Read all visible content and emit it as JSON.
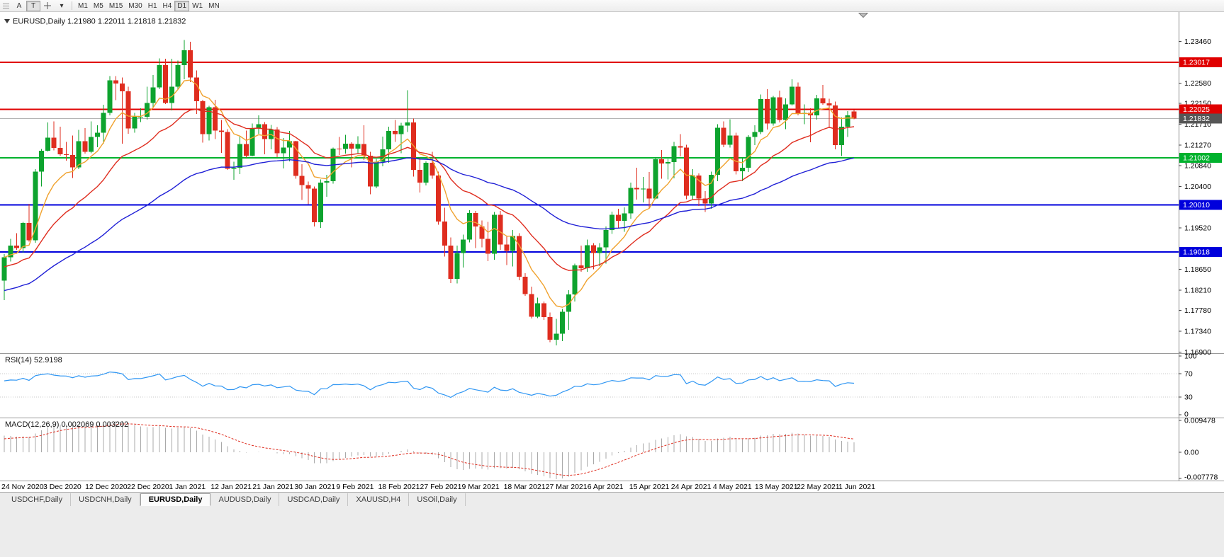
{
  "toolbar": {
    "tool_a": "A",
    "tool_t": "T",
    "timeframes": [
      "M1",
      "M5",
      "M15",
      "M30",
      "H1",
      "H4",
      "D1",
      "W1",
      "MN"
    ],
    "active_timeframe": "D1"
  },
  "chart": {
    "header": "EURUSD,Daily 1.21980 1.22011 1.21818 1.21832"
  },
  "colors": {
    "candle_up": "#0da32e",
    "candle_down": "#df2d1f",
    "level_red": "#e00000",
    "level_green": "#00b22d",
    "level_blue": "#0000dc",
    "ma_fast": "#f0a22e",
    "ma_mid": "#df2d1f",
    "ma_slow": "#1f1fd6",
    "rsi_line": "#2f96f3",
    "macd_hist": "#a9a9a9",
    "macd_signal": "#df2d1f",
    "current_tag_bg": "#565656",
    "bid_line": "#b4b4b4"
  },
  "chart_data": {
    "type": "candlestick",
    "symbol": "EURUSD",
    "timeframe": "Daily",
    "current_bar": {
      "open": "1.21980",
      "high": "1.22011",
      "low": "1.21818",
      "close": "1.21832"
    },
    "current_price": {
      "value": 1.21832,
      "label": "1.21832"
    },
    "levels": [
      {
        "price": 1.23017,
        "label": "1.23017",
        "color": "#e00000"
      },
      {
        "price": 1.22025,
        "label": "1.22025",
        "color": "#e00000"
      },
      {
        "price": 1.21002,
        "label": "1.21002",
        "color": "#00b22d"
      },
      {
        "price": 1.2001,
        "label": "1.20010",
        "color": "#0000dc"
      },
      {
        "price": 1.19018,
        "label": "1.19018",
        "color": "#0000dc"
      }
    ],
    "price_ticks": [
      "1.23460",
      "1.22580",
      "1.22150",
      "1.21710",
      "1.21270",
      "1.20840",
      "1.20400",
      "1.19520",
      "1.18650",
      "1.18210",
      "1.17780",
      "1.17340",
      "1.16900"
    ],
    "date_labels": [
      "24 Nov 2020",
      "3 Dec 2020",
      "12 Dec 2020",
      "22 Dec 2020",
      "1 Jan 2021",
      "12 Jan 2021",
      "21 Jan 2021",
      "30 Jan 2021",
      "9 Feb 2021",
      "18 Feb 2021",
      "27 Feb 2021",
      "9 Mar 2021",
      "18 Mar 2021",
      "27 Mar 2021",
      "6 Apr 2021",
      "15 Apr 2021",
      "24 Apr 2021",
      "4 May 2021",
      "13 May 2021",
      "22 May 2021",
      "1 Jun 2021"
    ],
    "moving_averages": [
      {
        "name": "fast-ma-line",
        "period": 8,
        "color": "#f0a22e"
      },
      {
        "name": "mid-ma-line",
        "period": 21,
        "color": "#df2d1f"
      },
      {
        "name": "slow-ma-line",
        "period": 55,
        "color": "#1f1fd6"
      }
    ],
    "indicators": {
      "rsi": {
        "display": "RSI(14) 52.9198",
        "period": 14,
        "levels": [
          "100",
          "70",
          "30",
          "0"
        ],
        "line_color": "#2f96f3"
      },
      "macd": {
        "display": "MACD(12,26,9) 0.002069 0.003202",
        "axis": [
          "0.009478",
          "0.00",
          "-0.007778"
        ],
        "max": 0.009478,
        "min": -0.007778
      }
    },
    "candles": [
      [
        1.1841,
        1.1897,
        1.18,
        1.189
      ],
      [
        1.189,
        1.1929,
        1.1881,
        1.1915
      ],
      [
        1.1915,
        1.1941,
        1.1906,
        1.191
      ],
      [
        1.191,
        1.1965,
        1.19,
        1.1963
      ],
      [
        1.1963,
        1.2003,
        1.1923,
        1.1926
      ],
      [
        1.1926,
        1.2076,
        1.1921,
        1.2071
      ],
      [
        1.2071,
        1.2119,
        1.204,
        1.2115
      ],
      [
        1.2115,
        1.2175,
        1.2114,
        1.2143
      ],
      [
        1.2143,
        1.2177,
        1.2116,
        1.2121
      ],
      [
        1.2121,
        1.2166,
        1.2105,
        1.2108
      ],
      [
        1.2108,
        1.2134,
        1.2094,
        1.2106
      ],
      [
        1.2106,
        1.2147,
        1.2058,
        1.208
      ],
      [
        1.208,
        1.2159,
        1.2076,
        1.2135
      ],
      [
        1.2135,
        1.2163,
        1.2109,
        1.2113
      ],
      [
        1.2113,
        1.2177,
        1.211,
        1.2144
      ],
      [
        1.2144,
        1.2169,
        1.2123,
        1.2153
      ],
      [
        1.2153,
        1.2212,
        1.213,
        1.2195
      ],
      [
        1.2195,
        1.2273,
        1.219,
        1.2264
      ],
      [
        1.2264,
        1.2273,
        1.2222,
        1.2257
      ],
      [
        1.2257,
        1.227,
        1.213,
        1.2241
      ],
      [
        1.2241,
        1.225,
        1.2151,
        1.2162
      ],
      [
        1.2162,
        1.2195,
        1.2153,
        1.2187
      ],
      [
        1.2187,
        1.2205,
        1.2176,
        1.2187
      ],
      [
        1.2187,
        1.225,
        1.2181,
        1.2216
      ],
      [
        1.2216,
        1.2275,
        1.2208,
        1.2249
      ],
      [
        1.2249,
        1.231,
        1.2245,
        1.2296
      ],
      [
        1.2296,
        1.2309,
        1.2214,
        1.2216
      ],
      [
        1.2216,
        1.2309,
        1.22,
        1.225
      ],
      [
        1.225,
        1.2306,
        1.2245,
        1.2296
      ],
      [
        1.2296,
        1.2349,
        1.2266,
        1.2327
      ],
      [
        1.2327,
        1.2345,
        1.226,
        1.227
      ],
      [
        1.227,
        1.2285,
        1.2193,
        1.222
      ],
      [
        1.222,
        1.2223,
        1.2132,
        1.215
      ],
      [
        1.215,
        1.221,
        1.2137,
        1.2207
      ],
      [
        1.2207,
        1.2223,
        1.214,
        1.2158
      ],
      [
        1.2158,
        1.218,
        1.2111,
        1.2155
      ],
      [
        1.2155,
        1.2161,
        1.2075,
        1.2077
      ],
      [
        1.2077,
        1.2092,
        1.2054,
        1.2079
      ],
      [
        1.2079,
        1.2145,
        1.2066,
        1.2129
      ],
      [
        1.2129,
        1.2158,
        1.2101,
        1.2105
      ],
      [
        1.2105,
        1.2173,
        1.2103,
        1.2163
      ],
      [
        1.2163,
        1.219,
        1.2151,
        1.2171
      ],
      [
        1.2171,
        1.2176,
        1.2108,
        1.214
      ],
      [
        1.214,
        1.217,
        1.2118,
        1.216
      ],
      [
        1.216,
        1.2165,
        1.2102,
        1.211
      ],
      [
        1.211,
        1.2142,
        1.2078,
        1.2122
      ],
      [
        1.2122,
        1.2157,
        1.2093,
        1.2135
      ],
      [
        1.2135,
        1.2136,
        1.2056,
        1.2062
      ],
      [
        1.2062,
        1.2087,
        1.2011,
        1.2043
      ],
      [
        1.2043,
        1.205,
        1.2002,
        1.2035
      ],
      [
        1.2035,
        1.204,
        1.1955,
        1.1964
      ],
      [
        1.1964,
        1.2055,
        1.1952,
        1.2048
      ],
      [
        1.2048,
        1.2064,
        1.2018,
        1.2051
      ],
      [
        1.2051,
        1.2122,
        1.2046,
        1.212
      ],
      [
        1.212,
        1.2144,
        1.2106,
        1.2119
      ],
      [
        1.2119,
        1.2149,
        1.2109,
        1.213
      ],
      [
        1.213,
        1.2133,
        1.208,
        1.212
      ],
      [
        1.212,
        1.2146,
        1.2109,
        1.2129
      ],
      [
        1.2129,
        1.2169,
        1.2096,
        1.2105
      ],
      [
        1.2105,
        1.2113,
        1.2023,
        1.204
      ],
      [
        1.204,
        1.2098,
        1.2036,
        1.2092
      ],
      [
        1.2092,
        1.2145,
        1.2082,
        1.2118
      ],
      [
        1.2118,
        1.2166,
        1.209,
        1.2157
      ],
      [
        1.2157,
        1.218,
        1.2134,
        1.215
      ],
      [
        1.215,
        1.2174,
        1.211,
        1.2168
      ],
      [
        1.2168,
        1.2243,
        1.2155,
        1.2175
      ],
      [
        1.2175,
        1.2183,
        1.2061,
        1.2075
      ],
      [
        1.2075,
        1.2101,
        1.2027,
        1.2048
      ],
      [
        1.2048,
        1.2093,
        1.2042,
        1.209
      ],
      [
        1.209,
        1.2113,
        1.2056,
        1.2063
      ],
      [
        1.2063,
        1.2071,
        1.1959,
        1.1966
      ],
      [
        1.1966,
        1.1995,
        1.1892,
        1.1915
      ],
      [
        1.1915,
        1.1932,
        1.1836,
        1.1845
      ],
      [
        1.1845,
        1.1915,
        1.1835,
        1.1899
      ],
      [
        1.1899,
        1.1938,
        1.1869,
        1.1928
      ],
      [
        1.1928,
        1.199,
        1.1922,
        1.1984
      ],
      [
        1.1984,
        1.1988,
        1.191,
        1.1955
      ],
      [
        1.1955,
        1.1968,
        1.1911,
        1.1929
      ],
      [
        1.1929,
        1.1965,
        1.1882,
        1.1898
      ],
      [
        1.1898,
        1.1986,
        1.1885,
        1.198
      ],
      [
        1.198,
        1.1988,
        1.1906,
        1.1917
      ],
      [
        1.1917,
        1.1935,
        1.1874,
        1.1904
      ],
      [
        1.1904,
        1.1948,
        1.1871,
        1.1935
      ],
      [
        1.1935,
        1.1941,
        1.1842,
        1.1849
      ],
      [
        1.1849,
        1.1857,
        1.1809,
        1.1813
      ],
      [
        1.1813,
        1.1828,
        1.1761,
        1.1765
      ],
      [
        1.1765,
        1.1805,
        1.1762,
        1.1793
      ],
      [
        1.1793,
        1.1797,
        1.1758,
        1.1764
      ],
      [
        1.1764,
        1.1774,
        1.1711,
        1.1716
      ],
      [
        1.1716,
        1.176,
        1.1704,
        1.1729
      ],
      [
        1.1729,
        1.1781,
        1.1713,
        1.1775
      ],
      [
        1.1775,
        1.1821,
        1.1737,
        1.1812
      ],
      [
        1.1812,
        1.1877,
        1.1797,
        1.1873
      ],
      [
        1.1873,
        1.1915,
        1.186,
        1.1867
      ],
      [
        1.1867,
        1.1928,
        1.186,
        1.1916
      ],
      [
        1.1916,
        1.192,
        1.1865,
        1.1899
      ],
      [
        1.1899,
        1.192,
        1.1872,
        1.1911
      ],
      [
        1.1911,
        1.1955,
        1.1877,
        1.1948
      ],
      [
        1.1948,
        1.1987,
        1.194,
        1.198
      ],
      [
        1.198,
        1.1993,
        1.1952,
        1.1967
      ],
      [
        1.1967,
        1.1996,
        1.1944,
        1.1983
      ],
      [
        1.1983,
        1.2048,
        1.1972,
        1.2037
      ],
      [
        1.2037,
        1.2079,
        1.2012,
        1.2034
      ],
      [
        1.2034,
        1.206,
        1.2006,
        1.2035
      ],
      [
        1.2035,
        1.207,
        1.1993,
        1.2014
      ],
      [
        1.2014,
        1.21,
        1.2013,
        1.2097
      ],
      [
        1.2097,
        1.2117,
        1.2056,
        1.2088
      ],
      [
        1.2088,
        1.2098,
        1.2055,
        1.2091
      ],
      [
        1.2091,
        1.2134,
        1.2057,
        1.2125
      ],
      [
        1.2125,
        1.215,
        1.2103,
        1.2122
      ],
      [
        1.2122,
        1.2128,
        1.2013,
        1.202
      ],
      [
        1.202,
        1.2076,
        1.2013,
        1.2063
      ],
      [
        1.2063,
        1.2067,
        1.1999,
        1.2014
      ],
      [
        1.2014,
        1.203,
        1.1986,
        1.2004
      ],
      [
        1.2004,
        1.2071,
        1.1993,
        1.2064
      ],
      [
        1.2064,
        1.2171,
        1.2051,
        1.2164
      ],
      [
        1.2164,
        1.2177,
        1.2123,
        1.2128
      ],
      [
        1.2128,
        1.2182,
        1.2122,
        1.2147
      ],
      [
        1.2147,
        1.2153,
        1.2065,
        1.2072
      ],
      [
        1.2072,
        1.21,
        1.2051,
        1.2079
      ],
      [
        1.2079,
        1.2148,
        1.207,
        1.2144
      ],
      [
        1.2144,
        1.2169,
        1.2127,
        1.2155
      ],
      [
        1.2155,
        1.2234,
        1.215,
        1.2224
      ],
      [
        1.2224,
        1.2245,
        1.216,
        1.2173
      ],
      [
        1.2173,
        1.2231,
        1.2168,
        1.2228
      ],
      [
        1.2228,
        1.2242,
        1.2175,
        1.218
      ],
      [
        1.218,
        1.2226,
        1.2161,
        1.2213
      ],
      [
        1.2213,
        1.2266,
        1.2211,
        1.225
      ],
      [
        1.225,
        1.2259,
        1.219,
        1.2193
      ],
      [
        1.2193,
        1.2213,
        1.2171,
        1.2195
      ],
      [
        1.2195,
        1.2205,
        1.2133,
        1.219
      ],
      [
        1.219,
        1.2233,
        1.2181,
        1.2226
      ],
      [
        1.2226,
        1.2254,
        1.2212,
        1.2215
      ],
      [
        1.2215,
        1.2225,
        1.2163,
        1.2211
      ],
      [
        1.2211,
        1.2219,
        1.2118,
        1.2127
      ],
      [
        1.2127,
        1.2185,
        1.2104,
        1.2166
      ],
      [
        1.2166,
        1.2199,
        1.2144,
        1.219
      ],
      [
        1.2198,
        1.22011,
        1.21818,
        1.21832
      ]
    ]
  },
  "tabs": {
    "items": [
      "USDCHF,Daily",
      "USDCNH,Daily",
      "EURUSD,Daily",
      "AUDUSD,Daily",
      "USDCAD,Daily",
      "XAUUSD,H4",
      "USOil,Daily"
    ],
    "active": "EURUSD,Daily"
  }
}
